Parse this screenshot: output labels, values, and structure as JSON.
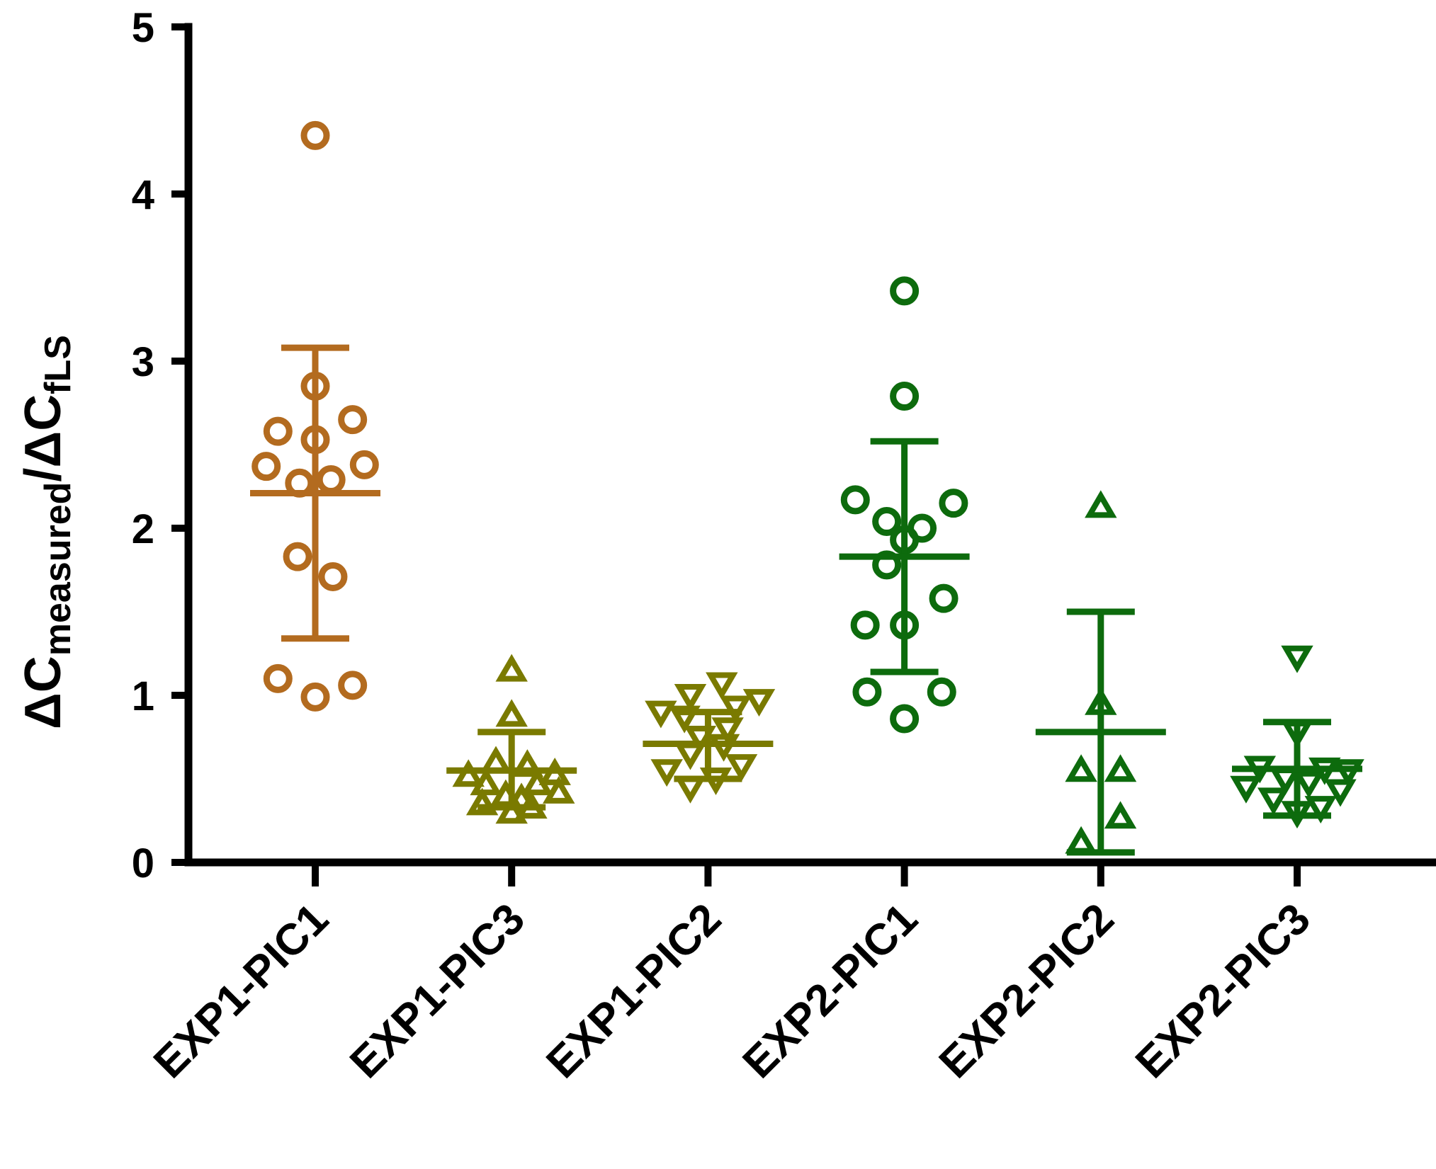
{
  "chart_data": {
    "type": "scatter",
    "title": "",
    "xlabel": "",
    "ylabel": {
      "prefix1": "ΔC",
      "sub1": "measured",
      "slash": "/ΔC",
      "sub2": "fLS"
    },
    "ylim": [
      0,
      5
    ],
    "yticks": [
      "0",
      "1",
      "2",
      "3",
      "4",
      "5"
    ],
    "categories": [
      "EXP1-PIC1",
      "EXP1-PIC3",
      "EXP1-PIC2",
      "EXP2-PIC1",
      "EXP2-PIC2",
      "EXP2-PIC3"
    ],
    "series": [
      {
        "name": "EXP1-PIC1",
        "marker": "circle",
        "color": "#B36B1F",
        "mean": 2.21,
        "sd_low": 1.34,
        "sd_high": 3.08,
        "points": [
          {
            "y": 4.35,
            "dx": 0.0
          },
          {
            "y": 2.85,
            "dx": 0.0
          },
          {
            "y": 2.65,
            "dx": 0.19
          },
          {
            "y": 2.58,
            "dx": -0.19
          },
          {
            "y": 2.53,
            "dx": 0.0
          },
          {
            "y": 2.38,
            "dx": 0.25
          },
          {
            "y": 2.37,
            "dx": -0.25
          },
          {
            "y": 2.29,
            "dx": 0.08
          },
          {
            "y": 2.27,
            "dx": -0.08
          },
          {
            "y": 1.83,
            "dx": -0.09
          },
          {
            "y": 1.71,
            "dx": 0.09
          },
          {
            "y": 1.1,
            "dx": -0.19
          },
          {
            "y": 1.06,
            "dx": 0.19
          },
          {
            "y": 0.99,
            "dx": 0.0
          }
        ]
      },
      {
        "name": "EXP1-PIC3",
        "marker": "triangle-up",
        "color": "#7A7A00",
        "mean": 0.55,
        "sd_low": 0.33,
        "sd_high": 0.78,
        "points": [
          {
            "y": 1.15,
            "dx": 0.0
          },
          {
            "y": 0.88,
            "dx": 0.0
          },
          {
            "y": 0.6,
            "dx": -0.08
          },
          {
            "y": 0.58,
            "dx": 0.08
          },
          {
            "y": 0.52,
            "dx": -0.22
          },
          {
            "y": 0.53,
            "dx": 0.22
          },
          {
            "y": 0.47,
            "dx": -0.13
          },
          {
            "y": 0.47,
            "dx": 0.13
          },
          {
            "y": 0.42,
            "dx": 0.24
          },
          {
            "y": 0.4,
            "dx": -0.03
          },
          {
            "y": 0.38,
            "dx": 0.05
          },
          {
            "y": 0.35,
            "dx": -0.15
          },
          {
            "y": 0.33,
            "dx": 0.1
          },
          {
            "y": 0.3,
            "dx": 0.0
          }
        ]
      },
      {
        "name": "EXP1-PIC2",
        "marker": "triangle-down",
        "color": "#7A7A00",
        "mean": 0.71,
        "sd_low": 0.5,
        "sd_high": 0.9,
        "points": [
          {
            "y": 1.07,
            "dx": 0.07
          },
          {
            "y": 1.0,
            "dx": -0.09
          },
          {
            "y": 0.97,
            "dx": 0.26
          },
          {
            "y": 0.93,
            "dx": 0.14
          },
          {
            "y": 0.9,
            "dx": -0.24
          },
          {
            "y": 0.87,
            "dx": -0.12
          },
          {
            "y": 0.8,
            "dx": 0.1
          },
          {
            "y": 0.75,
            "dx": -0.04
          },
          {
            "y": 0.7,
            "dx": 0.08
          },
          {
            "y": 0.65,
            "dx": -0.09
          },
          {
            "y": 0.58,
            "dx": 0.17
          },
          {
            "y": 0.55,
            "dx": -0.21
          },
          {
            "y": 0.5,
            "dx": 0.04
          },
          {
            "y": 0.45,
            "dx": -0.09
          }
        ]
      },
      {
        "name": "EXP2-PIC1",
        "marker": "circle",
        "color": "#0D6B0D",
        "mean": 1.83,
        "sd_low": 1.14,
        "sd_high": 2.52,
        "points": [
          {
            "y": 3.42,
            "dx": 0.0
          },
          {
            "y": 2.79,
            "dx": 0.0
          },
          {
            "y": 2.17,
            "dx": -0.25
          },
          {
            "y": 2.15,
            "dx": 0.25
          },
          {
            "y": 2.04,
            "dx": -0.09
          },
          {
            "y": 2.0,
            "dx": 0.09
          },
          {
            "y": 1.93,
            "dx": 0.0
          },
          {
            "y": 1.78,
            "dx": -0.09
          },
          {
            "y": 1.58,
            "dx": 0.2
          },
          {
            "y": 1.42,
            "dx": -0.2
          },
          {
            "y": 1.42,
            "dx": 0.0
          },
          {
            "y": 1.02,
            "dx": -0.19
          },
          {
            "y": 1.02,
            "dx": 0.19
          },
          {
            "y": 0.86,
            "dx": 0.0
          }
        ]
      },
      {
        "name": "EXP2-PIC2",
        "marker": "triangle-up",
        "color": "#0D6B0D",
        "mean": 0.78,
        "sd_low": 0.06,
        "sd_high": 1.5,
        "points": [
          {
            "y": 2.13,
            "dx": 0.0
          },
          {
            "y": 0.95,
            "dx": 0.0
          },
          {
            "y": 0.55,
            "dx": -0.1
          },
          {
            "y": 0.55,
            "dx": 0.1
          },
          {
            "y": 0.27,
            "dx": 0.1
          },
          {
            "y": 0.12,
            "dx": -0.1
          }
        ]
      },
      {
        "name": "EXP2-PIC3",
        "marker": "triangle-down",
        "color": "#0D6B0D",
        "mean": 0.56,
        "sd_low": 0.28,
        "sd_high": 0.84,
        "points": [
          {
            "y": 1.23,
            "dx": 0.0
          },
          {
            "y": 0.78,
            "dx": 0.0
          },
          {
            "y": 0.57,
            "dx": -0.19
          },
          {
            "y": 0.56,
            "dx": 0.14
          },
          {
            "y": 0.55,
            "dx": 0.26
          },
          {
            "y": 0.5,
            "dx": -0.06
          },
          {
            "y": 0.48,
            "dx": 0.06
          },
          {
            "y": 0.45,
            "dx": -0.26
          },
          {
            "y": 0.43,
            "dx": 0.22
          },
          {
            "y": 0.38,
            "dx": -0.12
          },
          {
            "y": 0.33,
            "dx": 0.12
          },
          {
            "y": 0.3,
            "dx": 0.0
          }
        ]
      }
    ]
  }
}
